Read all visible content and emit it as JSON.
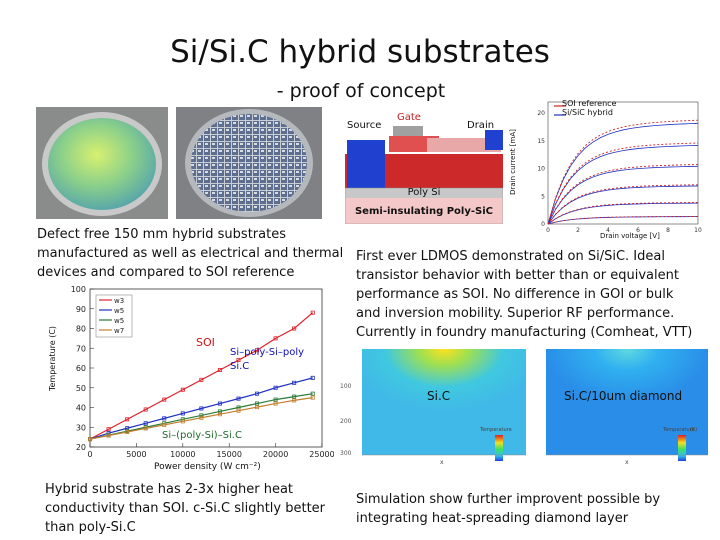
{
  "slide": {
    "title": "Si/Si.C hybrid substrates",
    "subtitle": "- proof of concept"
  },
  "photos": {
    "wafer_caption": "Defect free 150 mm hybrid substrates manufactured as well as electrical and thermal devices and compared to SOI reference"
  },
  "device": {
    "gate": "Gate",
    "source": "Source",
    "drain": "Drain",
    "poly_si": "Poly Si",
    "substrate": "Semi-insulating Poly-SiC"
  },
  "iv_chart": {
    "legend_soi": "SOI reference",
    "legend_hybrid": "Si/SiC hybrid",
    "ylabel": "Drain current [mA]",
    "xlabel": "Drain voltage [V]",
    "y_ticks": [
      "0",
      "5",
      "10",
      "15",
      "20"
    ],
    "x_ticks": [
      "0",
      "2",
      "4",
      "6",
      "8",
      "10"
    ]
  },
  "ldmos_text": "First ever LDMOS demonstrated on Si/SiC. Ideal transistor behavior with better than or equivalent performance as SOI. No difference in GOI or bulk and inversion mobility. Superior RF performance. Currently in foundry manufacturing (Comheat, VTT)",
  "temp_chart": {
    "ylabel": "Temperature (C)",
    "xlabel": "Power density (W cm⁻²)",
    "y_ticks": [
      "20",
      "30",
      "40",
      "50",
      "60",
      "70",
      "80",
      "90",
      "100"
    ],
    "x_ticks": [
      "0",
      "5000",
      "10000",
      "15000",
      "20000",
      "25000"
    ],
    "legend": [
      "w3",
      "w5",
      "w5",
      "w7"
    ],
    "label_soi": "SOI",
    "label_polysic": "Si–poly-Si–poly Si.C",
    "label_sisic": "Si–(poly-Si)–Si.C"
  },
  "chart_data": {
    "type": "line",
    "xlabel": "Power density (W cm⁻²)",
    "ylabel": "Temperature (C)",
    "xlim": [
      0,
      25000
    ],
    "ylim": [
      20,
      100
    ],
    "series": [
      {
        "name": "w3",
        "x": [
          0,
          2000,
          4000,
          6000,
          8000,
          10000,
          12000,
          14000,
          16000,
          18000,
          20000,
          22000,
          24000
        ],
        "y": [
          24,
          29,
          34,
          39,
          44,
          49,
          54,
          59,
          64,
          69,
          75,
          80,
          88
        ]
      },
      {
        "name": "w5",
        "x": [
          0,
          2000,
          4000,
          6000,
          8000,
          10000,
          12000,
          14000,
          16000,
          18000,
          20000,
          22000,
          24000
        ],
        "y": [
          24,
          27,
          29.5,
          32,
          34.5,
          37,
          39.5,
          42,
          44.5,
          47,
          50,
          52.5,
          55
        ]
      },
      {
        "name": "w5",
        "x": [
          0,
          2000,
          4000,
          6000,
          8000,
          10000,
          12000,
          14000,
          16000,
          18000,
          20000,
          22000,
          24000
        ],
        "y": [
          24,
          26,
          28,
          30,
          32,
          34,
          36,
          38,
          40,
          42,
          44,
          45.5,
          47
        ]
      },
      {
        "name": "w7",
        "x": [
          0,
          2000,
          4000,
          6000,
          8000,
          10000,
          12000,
          14000,
          16000,
          18000,
          20000,
          22000,
          24000
        ],
        "y": [
          24,
          25.8,
          27.6,
          29.4,
          31.2,
          33,
          34.8,
          36.6,
          38.4,
          40.2,
          42,
          43.6,
          45
        ]
      }
    ]
  },
  "sim": {
    "label_sic": "Si.C",
    "label_diamond": "Si.C/10um diamond",
    "y_ticks": [
      "100",
      "200",
      "300"
    ],
    "colorbar_title": "Temperature",
    "colorbar_unit": "(K)",
    "x_label": "x"
  },
  "bottom": {
    "left": "Hybrid substrate has 2-3x higher heat conductivity than SOI. c-Si.C slightly better than poly-Si.C",
    "right": "Simulation show further improvent possible by integrating heat-spreading diamond layer"
  },
  "colors": {
    "series_w3": "#e0202a",
    "series_w5a": "#2030c0",
    "series_w5b": "#2a7a3a",
    "series_w7": "#c08030"
  }
}
